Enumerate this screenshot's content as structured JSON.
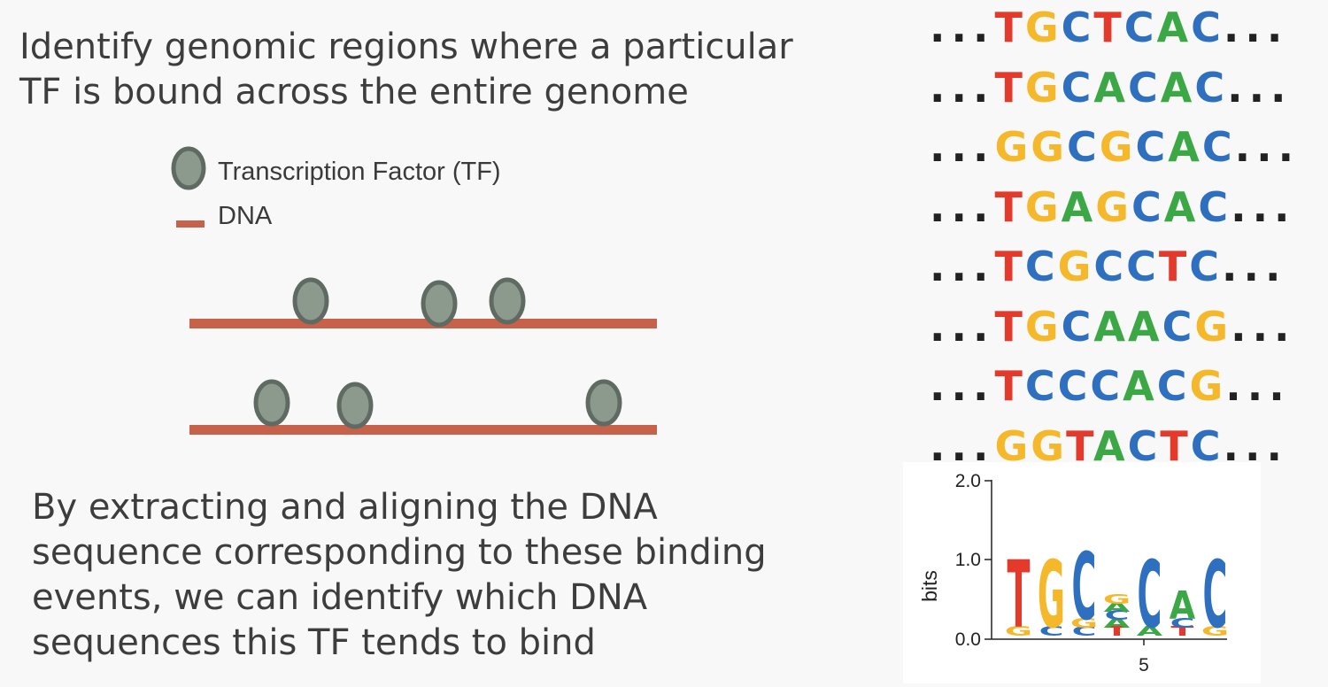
{
  "heading": {
    "line1": "Identify genomic regions where a particular",
    "line2": "TF is bound across the entire genome"
  },
  "legend": {
    "tf_label": "Transcription Factor (TF)",
    "dna_label": "DNA"
  },
  "conclusion": {
    "line1": "By extracting and aligning the DNA",
    "line2": "sequence corresponding to these binding",
    "line3": "events, we can identify which DNA",
    "line4": "sequences this TF tends to bind"
  },
  "colors": {
    "T": "#e43a2b",
    "G": "#f5b82a",
    "C": "#2f6fc0",
    "A": "#3ba845",
    "dna": "#c8614a",
    "tf_fill": "#8c9a8e",
    "tf_stroke": "#5f6b62"
  },
  "sequences": {
    "prefix": "...",
    "suffix": "...",
    "rows": [
      "TGCTCAC",
      "TGCACAC",
      "GGCGCAC",
      "TGAGCAC",
      "TCGCCTC",
      "TGCAACG",
      "TCCCACG",
      "GGTACTC"
    ]
  },
  "logo": {
    "ylabel": "bits",
    "y_ticks": [
      "2.0",
      "1.0",
      "0.0"
    ],
    "x_tick": "5",
    "columns": [
      {
        "big": "T",
        "small": [
          "G"
        ]
      },
      {
        "big": "G",
        "small": [
          "C"
        ]
      },
      {
        "big": "C",
        "small": [
          "G",
          "C"
        ]
      },
      {
        "big": "",
        "small": [
          "G",
          "A",
          "C",
          "A",
          "T"
        ]
      },
      {
        "big": "C",
        "small": [
          "A"
        ]
      },
      {
        "big": "A",
        "small": [
          "C",
          "T"
        ]
      },
      {
        "big": "C",
        "small": [
          "G"
        ]
      }
    ]
  }
}
